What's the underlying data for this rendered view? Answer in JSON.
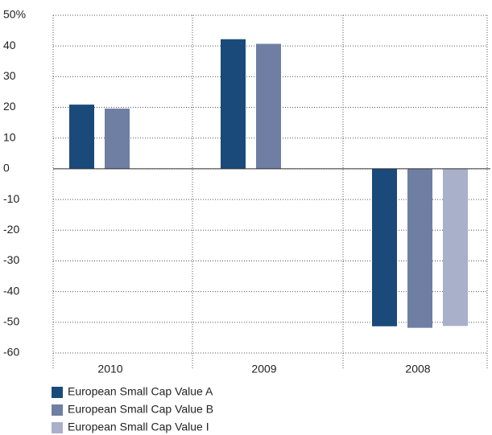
{
  "chart_data": {
    "type": "bar",
    "categories": [
      "2010",
      "2009",
      "2008"
    ],
    "series": [
      {
        "name": "European Small Cap Value A",
        "color": "#1a4a7a",
        "values": [
          20.9,
          42.2,
          -51.3
        ]
      },
      {
        "name": "European Small Cap Value B",
        "color": "#6f7ea3",
        "values": [
          19.6,
          40.7,
          -51.8
        ]
      },
      {
        "name": "European Small Cap Value I",
        "color": "#a9b0c9",
        "values": [
          null,
          null,
          -51.2
        ]
      }
    ],
    "ylim": [
      -60,
      50
    ],
    "yticks": [
      {
        "value": 50,
        "label": "50%"
      },
      40,
      30,
      20,
      10,
      0,
      -10,
      -20,
      -30,
      -40,
      -50,
      -60
    ],
    "grid": true
  }
}
